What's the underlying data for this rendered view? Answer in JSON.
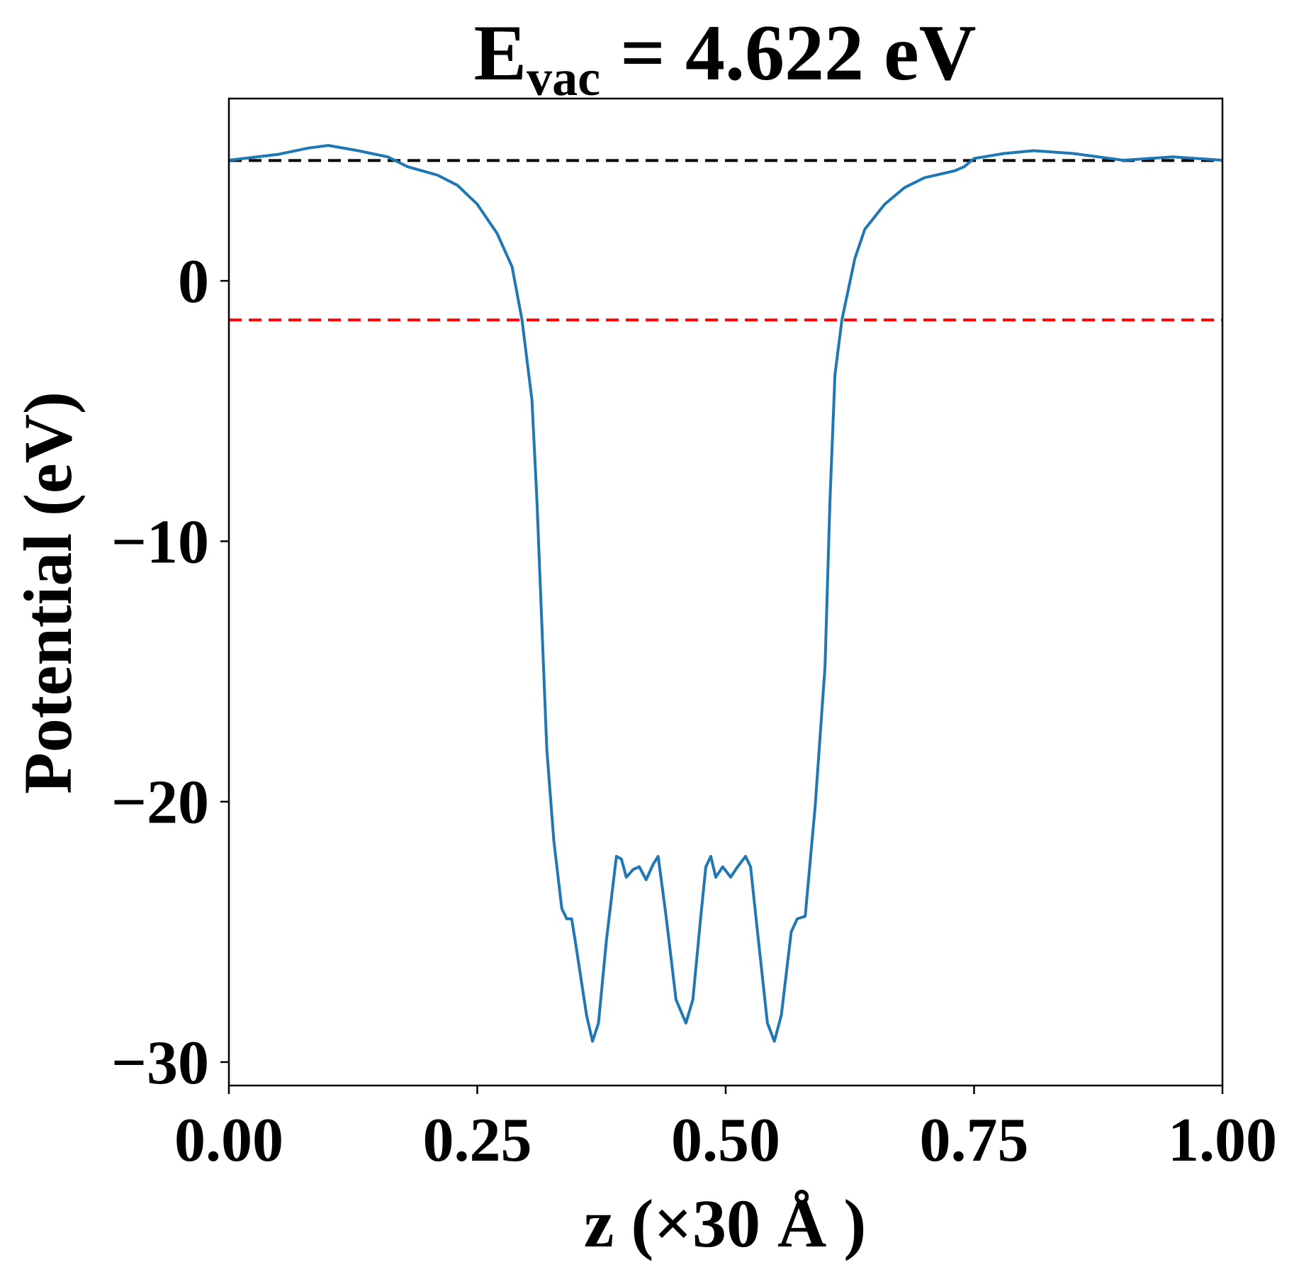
{
  "chart_data": {
    "type": "line",
    "title": {
      "main": "E",
      "sub": "vac",
      "rest": " = 4.622 eV"
    },
    "xlabel": "z (×30 Å )",
    "ylabel": "Potential (eV)",
    "x": [
      0.0,
      0.05,
      0.08,
      0.1,
      0.13,
      0.16,
      0.18,
      0.21,
      0.23,
      0.25,
      0.27,
      0.285,
      0.295,
      0.305,
      0.31,
      0.315,
      0.32,
      0.327,
      0.335,
      0.34,
      0.345,
      0.35,
      0.36,
      0.366,
      0.372,
      0.38,
      0.39,
      0.395,
      0.4,
      0.407,
      0.413,
      0.42,
      0.427,
      0.432,
      0.44,
      0.45,
      0.46,
      0.467,
      0.475,
      0.48,
      0.485,
      0.49,
      0.497,
      0.505,
      0.512,
      0.52,
      0.525,
      0.532,
      0.542,
      0.549,
      0.556,
      0.566,
      0.572,
      0.58,
      0.59,
      0.6,
      0.605,
      0.61,
      0.617,
      0.63,
      0.64,
      0.66,
      0.68,
      0.7,
      0.73,
      0.74,
      0.75,
      0.78,
      0.81,
      0.85,
      0.9,
      0.95,
      1.0
    ],
    "series": [
      {
        "color": "#1f77b4",
        "values": [
          4.63,
          4.86,
          5.1,
          5.2,
          5.0,
          4.76,
          4.38,
          4.06,
          3.67,
          2.94,
          1.82,
          0.54,
          -1.5,
          -4.57,
          -8.4,
          -13.2,
          -18.0,
          -21.5,
          -24.1,
          -24.5,
          -24.5,
          -25.7,
          -28.2,
          -29.2,
          -28.5,
          -25.3,
          -22.1,
          -22.2,
          -22.9,
          -22.6,
          -22.5,
          -23.0,
          -22.4,
          -22.1,
          -24.4,
          -27.6,
          -28.5,
          -27.6,
          -24.4,
          -22.5,
          -22.1,
          -22.9,
          -22.5,
          -22.9,
          -22.5,
          -22.1,
          -22.5,
          -25.0,
          -28.5,
          -29.2,
          -28.2,
          -25.0,
          -24.5,
          -24.4,
          -20.2,
          -14.8,
          -8.4,
          -3.6,
          -1.5,
          0.86,
          1.98,
          2.94,
          3.58,
          3.96,
          4.22,
          4.38,
          4.7,
          4.89,
          5.0,
          4.89,
          4.63,
          4.76,
          4.63
        ]
      }
    ],
    "hlines": [
      {
        "value": 4.622,
        "color": "#000000"
      },
      {
        "value": -1.5,
        "color": "#ff0000"
      }
    ],
    "xlim": [
      0,
      1
    ],
    "ylim": [
      -30.9,
      7.0
    ],
    "xticks": [
      {
        "value": 0,
        "label": "0.00"
      },
      {
        "value": 0.25,
        "label": "0.25"
      },
      {
        "value": 0.5,
        "label": "0.50"
      },
      {
        "value": 0.75,
        "label": "0.75"
      },
      {
        "value": 1,
        "label": "1.00"
      }
    ],
    "yticks": [
      {
        "value": -30,
        "label": "−30"
      },
      {
        "value": -20,
        "label": "−20"
      },
      {
        "value": -10,
        "label": "−10"
      },
      0
    ]
  }
}
